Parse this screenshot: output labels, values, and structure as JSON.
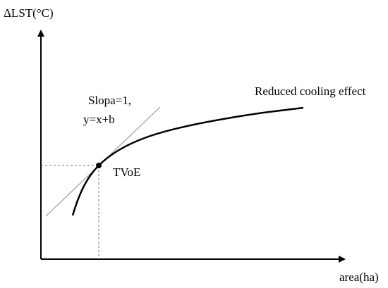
{
  "axes": {
    "y_label": "ΔLST(°C)",
    "x_label": "area(ha)"
  },
  "annotations": {
    "tangent": [
      "Slopa=1,",
      "y=x+b"
    ],
    "curve": "Reduced cooling effect",
    "point": "TVoE"
  }
}
